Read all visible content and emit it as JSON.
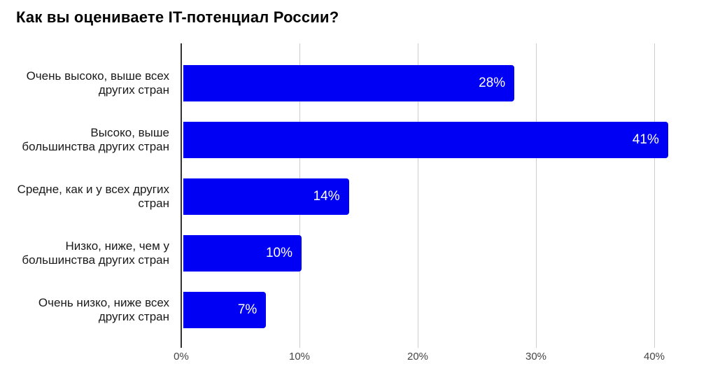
{
  "title": "Как вы оцениваете IT-потенциал России?",
  "colors": {
    "bar": "#0000f5",
    "axis": "#333333",
    "gridline": "#cccccc",
    "title_text": "#000000",
    "label_text": "#1a1a1a",
    "tick_text": "#444444",
    "value_label": "#ffffff",
    "background": "#ffffff"
  },
  "chart_data": {
    "type": "bar",
    "orientation": "horizontal",
    "title": "Как вы оцениваете IT-потенциал России?",
    "categories": [
      "Очень высоко, выше всех других стран",
      "Высоко, выше большинства других стран",
      "Средне, как и у всех других стран",
      "Низко, ниже, чем у большинства других стран",
      "Очень низко, ниже всех других стран"
    ],
    "category_lines": [
      [
        "Очень высоко, выше всех",
        "других стран"
      ],
      [
        "Высоко, выше",
        "большинства других стран"
      ],
      [
        "Средне, как и у всех других",
        "стран"
      ],
      [
        "Низко, ниже, чем у",
        "большинства других стран"
      ],
      [
        "Очень низко, ниже всех",
        "других стран"
      ]
    ],
    "values": [
      28,
      41,
      14,
      10,
      7
    ],
    "value_labels": [
      "28%",
      "41%",
      "14%",
      "10%",
      "7%"
    ],
    "x_ticks": [
      "0%",
      "10%",
      "20%",
      "30%",
      "40%"
    ],
    "x_tick_values": [
      0,
      10,
      20,
      30,
      40
    ],
    "xlim": [
      0,
      44.4
    ],
    "xlabel": "",
    "ylabel": "",
    "grid": "vertical",
    "legend": "none"
  }
}
